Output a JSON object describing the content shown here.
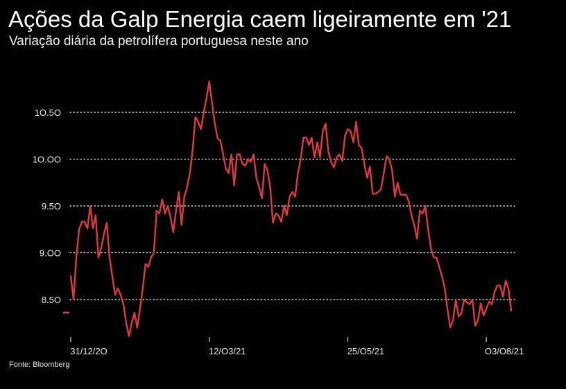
{
  "header": {
    "title": "Ações da Galp Energia caem ligeiramente em '21",
    "subtitle": "Variação diária da petrolífera portuguesa neste ano"
  },
  "footer": {
    "source": "Fonte: Bloomberg"
  },
  "colors": {
    "background": "#000000",
    "line": "#e03a3e",
    "grid": "#ffffff",
    "text": "#ffffff"
  },
  "chart_data": {
    "type": "line",
    "title": "Ações da Galp Energia caem ligeiramente em '21",
    "subtitle": "Variação diária da petrolífera portuguesa neste ano",
    "xlabel": "",
    "ylabel": "",
    "ylim": [
      8.1,
      10.9
    ],
    "yticks": [
      8.5,
      9.0,
      9.5,
      10.0,
      10.5
    ],
    "ytick_labels": [
      "8.5O",
      "9.OO",
      "9.5O",
      "1O.OO",
      "1O.5O"
    ],
    "grid": "horizontal-dotted",
    "xticks": [
      "31/12/2O",
      "12/O3/21",
      "25/O5/21",
      "O3/O8/21"
    ],
    "xtick_index": [
      0,
      50,
      100,
      150
    ],
    "start_marker_value": 8.36,
    "series": [
      {
        "values": [
          8.75,
          8.5,
          8.95,
          9.25,
          9.33,
          9.33,
          9.26,
          9.5,
          9.26,
          9.4,
          8.95,
          9.05,
          9.2,
          9.32,
          8.95,
          8.75,
          8.55,
          8.62,
          8.55,
          8.45,
          8.25,
          8.11,
          8.25,
          8.36,
          8.2,
          8.4,
          8.62,
          8.88,
          8.85,
          8.95,
          9.0,
          9.45,
          9.42,
          9.57,
          9.42,
          9.5,
          9.38,
          9.22,
          9.45,
          9.65,
          9.3,
          9.6,
          9.7,
          9.85,
          10.1,
          10.45,
          10.4,
          10.32,
          10.5,
          10.65,
          10.83,
          10.6,
          10.38,
          10.22,
          10.2,
          10.05,
          9.9,
          9.85,
          10.05,
          9.72,
          10.05,
          10.05,
          9.95,
          9.93,
          10.0,
          9.97,
          10.05,
          9.8,
          9.7,
          9.58,
          9.95,
          9.88,
          9.7,
          9.32,
          9.42,
          9.4,
          9.33,
          9.5,
          9.4,
          9.6,
          9.65,
          9.6,
          9.85,
          10.0,
          10.23,
          10.23,
          10.15,
          10.23,
          10.02,
          10.18,
          10.02,
          10.3,
          10.38,
          10.08,
          9.97,
          9.91,
          10.02,
          10.05,
          9.98,
          10.25,
          10.32,
          10.3,
          10.18,
          10.4,
          10.15,
          10.12,
          9.95,
          9.8,
          9.92,
          9.63,
          9.63,
          9.65,
          9.68,
          9.85,
          10.03,
          10.0,
          9.88,
          9.6,
          9.75,
          9.62,
          9.62,
          9.62,
          9.55,
          9.4,
          9.3,
          9.15,
          9.45,
          9.42,
          9.5,
          9.25,
          9.05,
          8.95,
          8.95,
          8.85,
          8.75,
          8.62,
          8.4,
          8.2,
          8.28,
          8.5,
          8.32,
          8.35,
          8.5,
          8.47,
          8.45,
          8.5,
          8.22,
          8.28,
          8.46,
          8.33,
          8.4,
          8.48,
          8.45,
          8.58,
          8.65,
          8.65,
          8.53,
          8.7,
          8.62,
          8.38
        ]
      }
    ]
  }
}
